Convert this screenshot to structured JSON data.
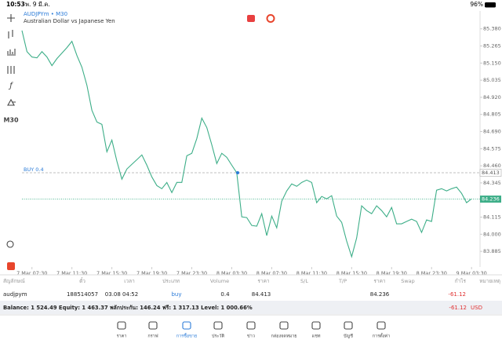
{
  "status_bar": {
    "time": "10:53",
    "date": "พ. 9 มี.ค.",
    "battery": "96%"
  },
  "chart": {
    "type": "line",
    "symbol": "AUDJPYm • M30",
    "description": "Australian Dollar vs Japanese Yen",
    "timeframe": "M30",
    "color": "#3dae88",
    "values": [
      85.369,
      85.227,
      85.191,
      85.185,
      85.227,
      85.191,
      85.133,
      85.18,
      85.217,
      85.254,
      85.296,
      85.201,
      85.122,
      85.001,
      84.833,
      84.754,
      84.738,
      84.554,
      84.633,
      84.491,
      84.37,
      84.438,
      84.47,
      84.501,
      84.533,
      84.464,
      84.385,
      84.327,
      84.306,
      84.348,
      84.28,
      84.348,
      84.348,
      84.527,
      84.544,
      84.643,
      84.78,
      84.717,
      84.601,
      84.475,
      84.544,
      84.517,
      84.464,
      84.413,
      84.117,
      84.112,
      84.059,
      84.054,
      84.138,
      83.991,
      84.122,
      84.043,
      84.222,
      84.291,
      84.338,
      84.322,
      84.348,
      84.364,
      84.348,
      84.212,
      84.254,
      84.238,
      84.259,
      84.122,
      84.08,
      83.954,
      83.849,
      83.975,
      84.191,
      84.159,
      84.138,
      84.191,
      84.159,
      84.117,
      84.18,
      84.07,
      84.07,
      84.086,
      84.101,
      84.086,
      84.012,
      84.096,
      84.086,
      84.296,
      84.306,
      84.291,
      84.306,
      84.317,
      84.275,
      84.212,
      84.238
    ],
    "xlim": [
      0,
      91.7
    ],
    "xticks": [
      {
        "value": 2,
        "label": "7 Mar 07:30"
      },
      {
        "value": 10,
        "label": "7 Mar 11:30"
      },
      {
        "value": 18,
        "label": "7 Mar 15:30"
      },
      {
        "value": 26,
        "label": "7 Mar 19:30"
      },
      {
        "value": 34,
        "label": "7 Mar 23:30"
      },
      {
        "value": 42,
        "label": "8 Mar 03:30"
      },
      {
        "value": 50,
        "label": "8 Mar 07:30"
      },
      {
        "value": 58,
        "label": "8 Mar 11:30"
      },
      {
        "value": 66,
        "label": "8 Mar 15:30"
      },
      {
        "value": 74,
        "label": "8 Mar 19:30"
      },
      {
        "value": 82,
        "label": "8 Mar 23:30"
      },
      {
        "value": 90,
        "label": "9 Mar 03:30"
      }
    ],
    "ylim": [
      83.78,
      85.5
    ],
    "yticks": [
      {
        "value": 85.38,
        "label": "85.380"
      },
      85.265,
      {
        "value": 85.15,
        "label": "85.150"
      },
      85.035,
      {
        "value": 84.92,
        "label": "84.920"
      },
      84.805,
      {
        "value": 84.69,
        "label": "84.690"
      },
      84.575,
      {
        "value": 84.46,
        "label": "84.460"
      },
      84.345,
      84.115,
      {
        "value": 84,
        "label": "84.000"
      },
      83.885
    ],
    "order_line": {
      "label": "BUY 0.4",
      "price": 84.413
    },
    "bid_line": {
      "price": 84.236
    }
  },
  "trade_table": {
    "headers": {
      "symbol": "สัญลักษณ์",
      "ticket": "ตั๋ว",
      "time": "เวลา",
      "type": "ประเภท",
      "volume": "Volume",
      "open_price": "ราคา",
      "sl": "S/L",
      "tp": "T/P",
      "current_price": "ราคา",
      "swap": "Swap",
      "profit": "กำไร",
      "comment": "หมายเหตุ"
    },
    "rows": [
      {
        "symbol": "audjpym",
        "ticket": "188514057",
        "time": "03.08 04:52",
        "type": "buy",
        "volume": "0.4",
        "open_price": "84.413",
        "current_price": "84.236",
        "profit": "-61.12"
      }
    ],
    "summary": {
      "text": "Balance: 1 524.49 Equity: 1 463.37 พลักประกัน: 146.24 ฟรี: 1 317.13 Level: 1 000.66%",
      "profit": "-61.12",
      "currency": "USD"
    }
  },
  "nav": [
    "ราคา",
    "กราฟ",
    "การซื้อขาย",
    "ประวัติ",
    "ข่าว",
    "กล่องจดหมาย",
    "แชท",
    "บัญชี",
    "การตั้งค่า"
  ]
}
